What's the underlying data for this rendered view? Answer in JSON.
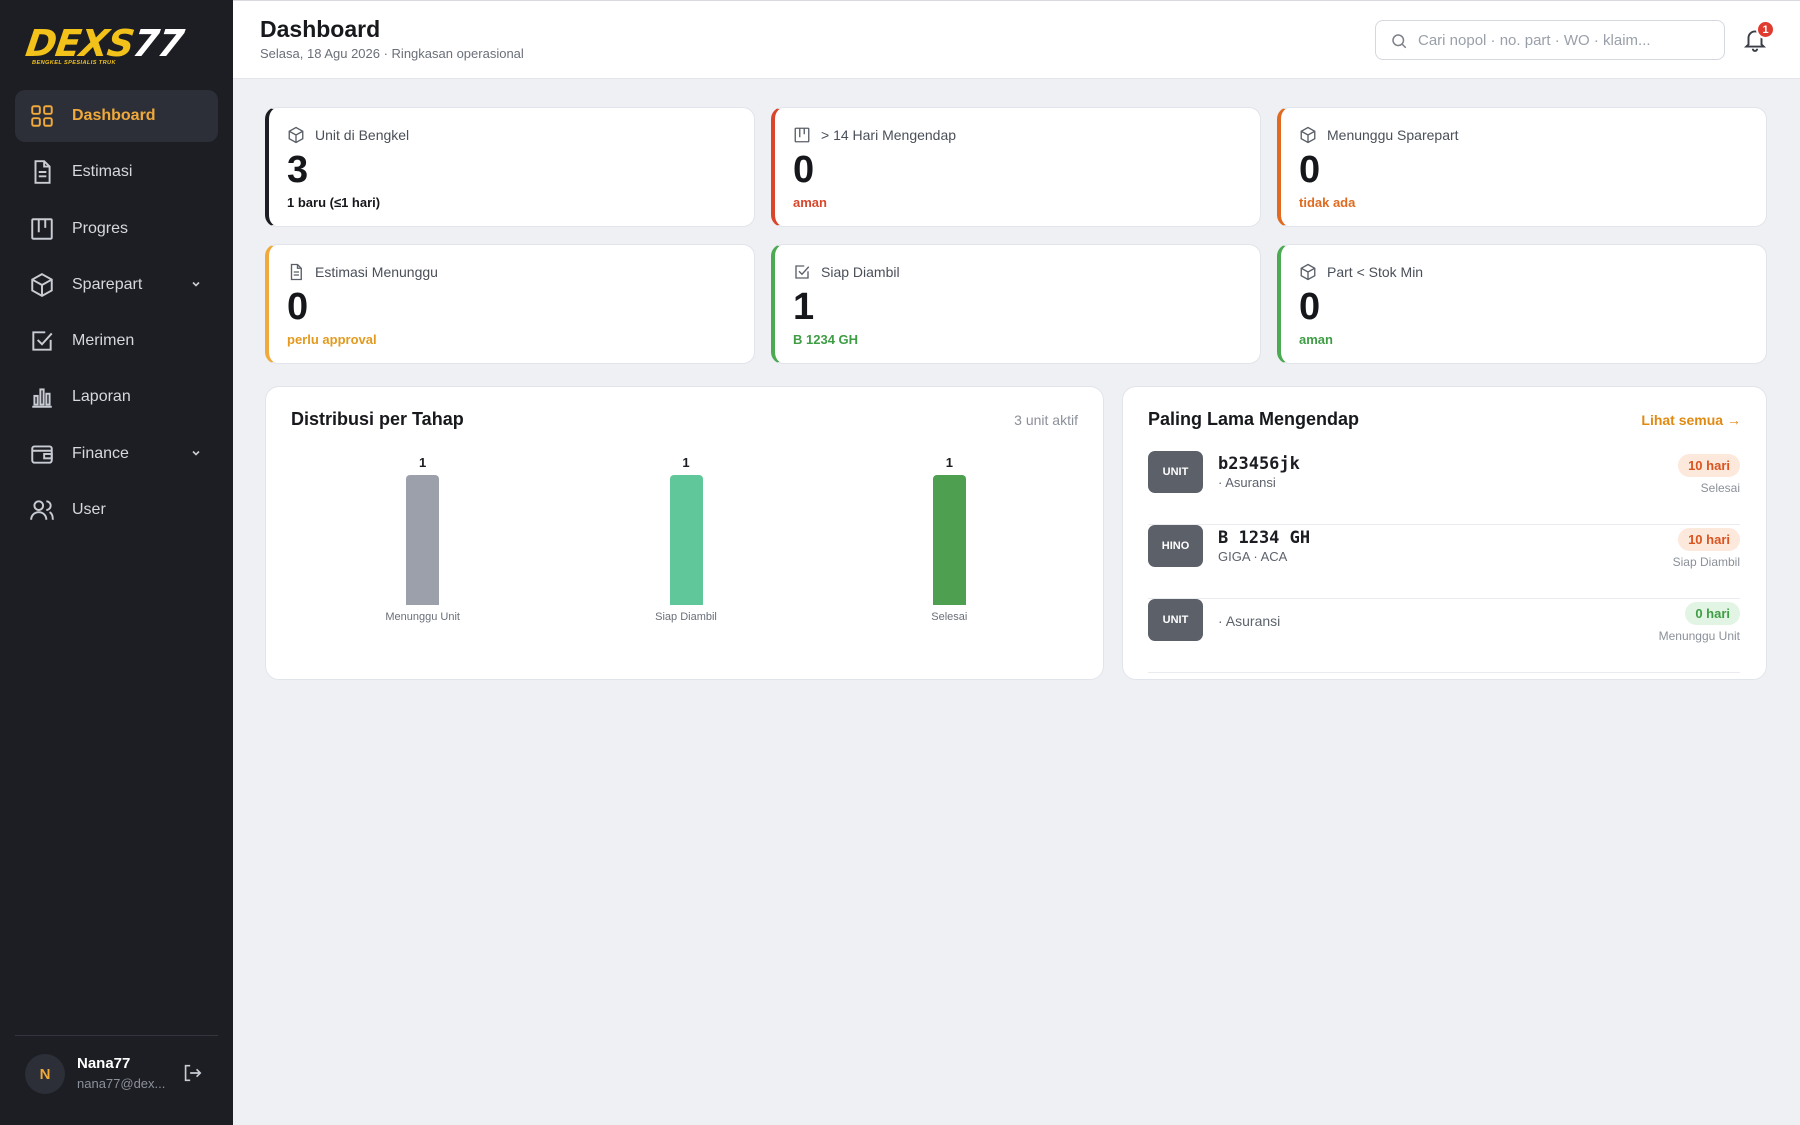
{
  "brand": {
    "logo_main_a": "DEXS",
    "logo_main_b": "77",
    "logo_sub": "BENGKEL SPESIALIS TRUK"
  },
  "sidebar": {
    "items": [
      {
        "label": "Dashboard",
        "icon": "grid-icon",
        "active": true
      },
      {
        "label": "Estimasi",
        "icon": "document-icon"
      },
      {
        "label": "Progres",
        "icon": "kanban-icon"
      },
      {
        "label": "Sparepart",
        "icon": "box-icon",
        "has_submenu": true
      },
      {
        "label": "Merimen",
        "icon": "checkbox-icon"
      },
      {
        "label": "Laporan",
        "icon": "bar-chart-icon"
      },
      {
        "label": "Finance",
        "icon": "wallet-icon",
        "has_submenu": true
      },
      {
        "label": "User",
        "icon": "users-icon"
      }
    ]
  },
  "profile": {
    "initial": "N",
    "name": "Nana77",
    "email": "nana77@dex..."
  },
  "header": {
    "title": "Dashboard",
    "subtitle": "Selasa, 18 Agu 2026 · Ringkasan operasional",
    "search_placeholder": "Cari nopol · no. part · WO · klaim...",
    "notification_count": "1"
  },
  "stats": [
    {
      "label": "Unit di Bengkel",
      "value": "3",
      "note": "1 baru (≤1 hari)",
      "accent": "#1c1e24",
      "note_color": "#15171b",
      "icon": "box-icon"
    },
    {
      "label": "> 14 Hari Mengendap",
      "value": "0",
      "note": "aman",
      "accent": "#d9462b",
      "note_color": "#d9462b",
      "icon": "kanban-icon"
    },
    {
      "label": "Menunggu Sparepart",
      "value": "0",
      "note": "tidak ada",
      "accent": "#e06a1f",
      "note_color": "#e06a1f",
      "icon": "box-icon"
    },
    {
      "label": "Estimasi Menunggu",
      "value": "0",
      "note": "perlu approval",
      "accent": "#f0a93a",
      "note_color": "#e39a1e",
      "icon": "document-icon"
    },
    {
      "label": "Siap Diambil",
      "value": "1",
      "note": "B 1234 GH",
      "accent": "#4caa52",
      "note_color": "#3f9d45",
      "icon": "checkbox-icon"
    },
    {
      "label": "Part < Stok Min",
      "value": "0",
      "note": "aman",
      "accent": "#4caa52",
      "note_color": "#3f9d45",
      "icon": "box-icon"
    }
  ],
  "distribution": {
    "title": "Distribusi per Tahap",
    "meta": "3 unit aktif"
  },
  "chart_data": {
    "type": "bar",
    "title": "Distribusi per Tahap",
    "categories": [
      "Menunggu Unit",
      "Siap Diambil",
      "Selesai"
    ],
    "values": [
      1,
      1,
      1
    ],
    "colors": [
      "#9ca0aa",
      "#5fc79a",
      "#4e9f4f"
    ],
    "ylim": [
      0,
      1
    ]
  },
  "longest": {
    "title": "Paling Lama Mengendap",
    "link": "Lihat semua →",
    "rows": [
      {
        "badge": "UNIT",
        "plate": "b23456jk",
        "desc": "· Asuransi",
        "days": "10 hari",
        "stage": "Selesai",
        "pill_bg": "#fde8dc",
        "pill_fg": "#d9541f"
      },
      {
        "badge": "HINO",
        "plate": "B 1234 GH",
        "desc": "GIGA · ACA",
        "days": "10 hari",
        "stage": "Siap Diambil",
        "pill_bg": "#fde8dc",
        "pill_fg": "#d9541f"
      },
      {
        "badge": "UNIT",
        "plate": "",
        "desc": "· Asuransi",
        "days": "0 hari",
        "stage": "Menunggu Unit",
        "pill_bg": "#e2f4e4",
        "pill_fg": "#3f9d45"
      }
    ]
  }
}
